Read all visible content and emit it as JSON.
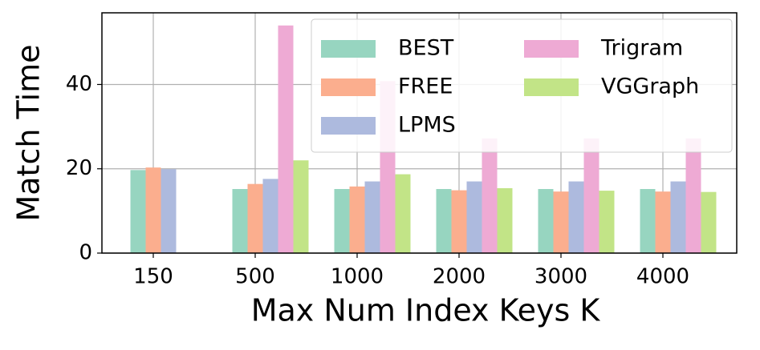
{
  "chart_data": {
    "type": "bar",
    "x_label": "Max Num Index Keys K",
    "y_label": "Match Time",
    "categories": [
      "150",
      "500",
      "1000",
      "2000",
      "3000",
      "4000"
    ],
    "series": [
      {
        "name": "BEST",
        "color": "#97d5c0",
        "values": [
          19.7,
          15.2,
          15.2,
          15.2,
          15.2,
          15.2
        ]
      },
      {
        "name": "FREE",
        "color": "#fbae8e",
        "values": [
          20.3,
          16.4,
          15.8,
          14.9,
          14.6,
          14.6
        ]
      },
      {
        "name": "LPMS",
        "color": "#adbade",
        "values": [
          19.9,
          17.6,
          17.0,
          17.0,
          17.0,
          17.0
        ]
      },
      {
        "name": "Trigram",
        "color": "#eeaad4",
        "values": [
          null,
          54.0,
          40.8,
          27.2,
          27.2,
          27.2
        ]
      },
      {
        "name": "VGGraph",
        "color": "#c2e487",
        "values": [
          null,
          22.0,
          18.7,
          15.4,
          14.8,
          14.5
        ]
      }
    ],
    "ylim": [
      0,
      57
    ],
    "yticks": [
      0,
      20,
      40
    ],
    "grid": true
  }
}
